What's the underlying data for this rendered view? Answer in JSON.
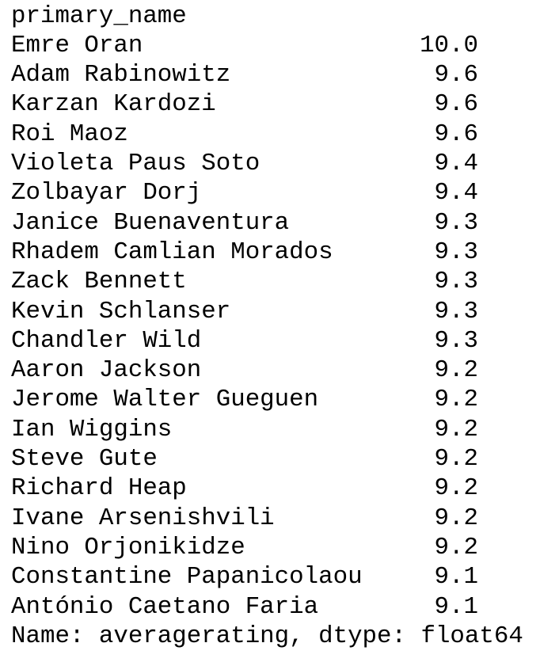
{
  "header": {
    "index_name": "primary_name"
  },
  "rows": [
    {
      "name": "Emre Oran",
      "value": "10.0"
    },
    {
      "name": "Adam Rabinowitz",
      "value": "9.6"
    },
    {
      "name": "Karzan Kardozi",
      "value": "9.6"
    },
    {
      "name": "Roi Maoz",
      "value": "9.6"
    },
    {
      "name": "Violeta Paus Soto",
      "value": "9.4"
    },
    {
      "name": "Zolbayar Dorj",
      "value": "9.4"
    },
    {
      "name": "Janice Buenaventura",
      "value": "9.3"
    },
    {
      "name": "Rhadem Camlian Morados",
      "value": "9.3"
    },
    {
      "name": "Zack Bennett",
      "value": "9.3"
    },
    {
      "name": "Kevin Schlanser",
      "value": "9.3"
    },
    {
      "name": "Chandler Wild",
      "value": "9.3"
    },
    {
      "name": "Aaron Jackson",
      "value": "9.2"
    },
    {
      "name": "Jerome Walter Gueguen",
      "value": "9.2"
    },
    {
      "name": "Ian Wiggins",
      "value": "9.2"
    },
    {
      "name": "Steve Gute",
      "value": "9.2"
    },
    {
      "name": "Richard Heap",
      "value": "9.2"
    },
    {
      "name": "Ivane Arsenishvili",
      "value": "9.2"
    },
    {
      "name": "Nino Orjonikidze",
      "value": "9.2"
    },
    {
      "name": "Constantine Papanicolaou",
      "value": "9.1"
    },
    {
      "name": "António Caetano Faria",
      "value": "9.1"
    }
  ],
  "footer": "Name: averagerating, dtype: float64"
}
